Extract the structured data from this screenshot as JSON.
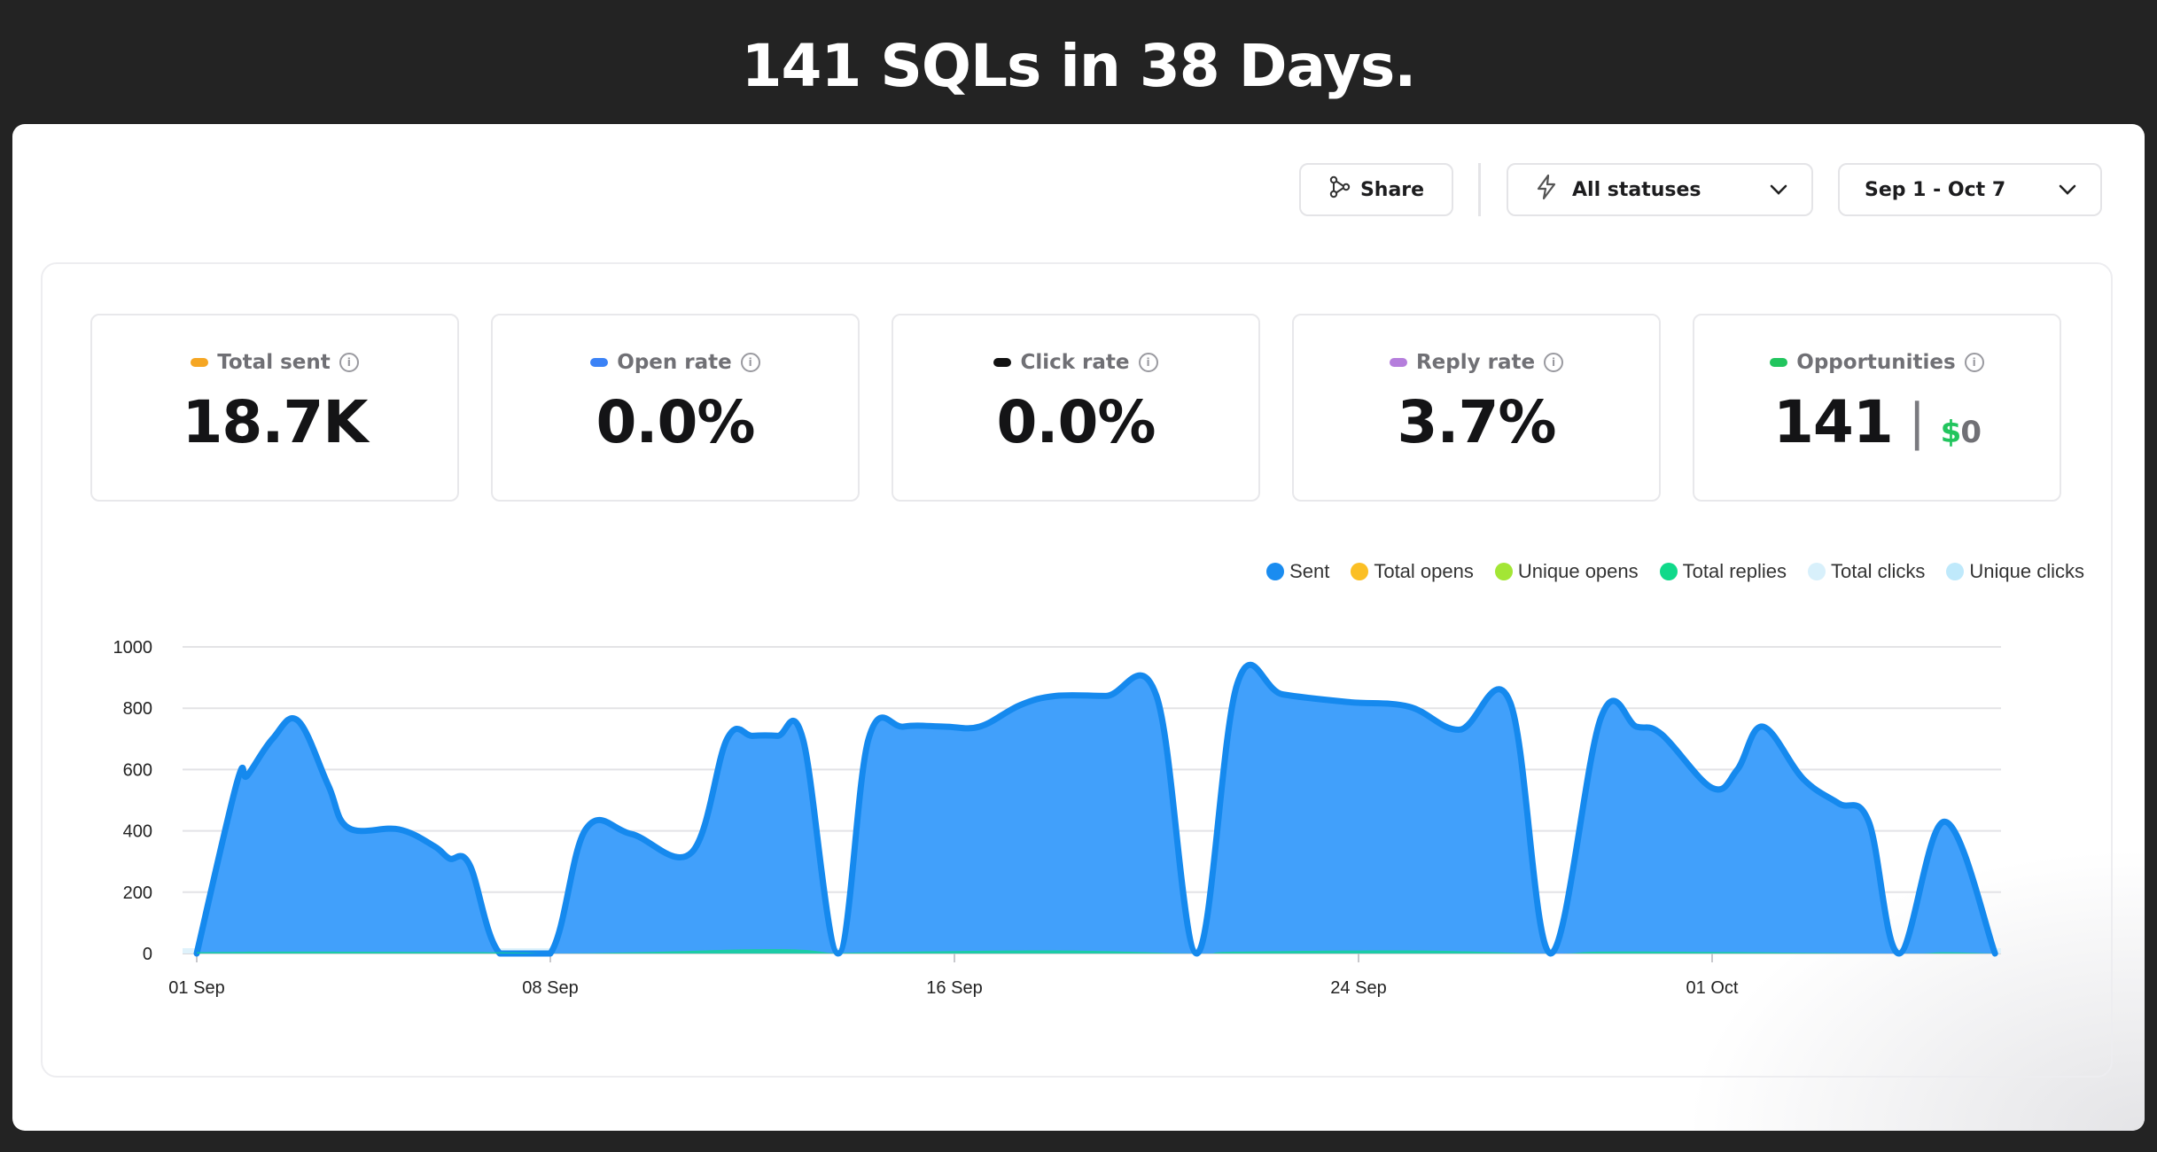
{
  "headline": "141 SQLs in 38 Days.",
  "toolbar": {
    "share_label": "Share",
    "status_label": "All statuses",
    "date_label": "Sep 1 - Oct 7"
  },
  "stats": [
    {
      "label": "Total sent",
      "value": "18.7K",
      "color": "#f5a623"
    },
    {
      "label": "Open rate",
      "value": "0.0%",
      "color": "#3b82f6"
    },
    {
      "label": "Click rate",
      "value": "0.0%",
      "color": "#111111"
    },
    {
      "label": "Reply rate",
      "value": "3.7%",
      "color": "#b57edc"
    },
    {
      "label": "Opportunities",
      "value": "141",
      "money_symbol": "$",
      "money_value": "0",
      "color": "#22c55e"
    }
  ],
  "legend": [
    {
      "name": "Sent",
      "color": "#1a8cf0"
    },
    {
      "name": "Total opens",
      "color": "#fbbf24"
    },
    {
      "name": "Unique opens",
      "color": "#a3e635"
    },
    {
      "name": "Total replies",
      "color": "#10d98a"
    },
    {
      "name": "Total clicks",
      "color": "#d8f0fb"
    },
    {
      "name": "Unique clicks",
      "color": "#bfe9fb"
    }
  ],
  "chart_data": {
    "type": "area",
    "ylim": [
      0,
      1000
    ],
    "yticks": [
      0,
      200,
      400,
      600,
      800,
      1000
    ],
    "xticks": [
      {
        "label": "01 Sep",
        "day": 0
      },
      {
        "label": "08 Sep",
        "day": 7
      },
      {
        "label": "16 Sep",
        "day": 15
      },
      {
        "label": "24 Sep",
        "day": 23
      },
      {
        "label": "01 Oct",
        "day": 30
      }
    ],
    "series": [
      {
        "name": "Sent",
        "color": "#1a8cf0",
        "points": [
          [
            0,
            0
          ],
          [
            0.8,
            560
          ],
          [
            1,
            580
          ],
          [
            1.5,
            700
          ],
          [
            2,
            760
          ],
          [
            2.6,
            550
          ],
          [
            3,
            410
          ],
          [
            4,
            405
          ],
          [
            4.7,
            350
          ],
          [
            5,
            310
          ],
          [
            5.4,
            290
          ],
          [
            6,
            0
          ],
          [
            7,
            0
          ],
          [
            7.7,
            405
          ],
          [
            8.6,
            390
          ],
          [
            9.8,
            330
          ],
          [
            10.5,
            700
          ],
          [
            11,
            710
          ],
          [
            11.5,
            710
          ],
          [
            12,
            700
          ],
          [
            12.7,
            0
          ],
          [
            13.3,
            700
          ],
          [
            14,
            740
          ],
          [
            14.8,
            740
          ],
          [
            15.5,
            740
          ],
          [
            16.3,
            810
          ],
          [
            17,
            840
          ],
          [
            18,
            840
          ],
          [
            19,
            840
          ],
          [
            19.8,
            0
          ],
          [
            20.6,
            880
          ],
          [
            21.5,
            845
          ],
          [
            22.8,
            820
          ],
          [
            24,
            805
          ],
          [
            25,
            730
          ],
          [
            26,
            820
          ],
          [
            26.8,
            0
          ],
          [
            27.8,
            770
          ],
          [
            28.5,
            740
          ],
          [
            29,
            715
          ],
          [
            30,
            540
          ],
          [
            30.5,
            600
          ],
          [
            31,
            740
          ],
          [
            31.8,
            570
          ],
          [
            32.5,
            490
          ],
          [
            33.1,
            430
          ],
          [
            33.7,
            0
          ],
          [
            34.6,
            430
          ],
          [
            35.6,
            0
          ]
        ]
      },
      {
        "name": "Total replies",
        "color": "#10d98a",
        "points": [
          [
            0,
            4
          ],
          [
            2,
            6
          ],
          [
            6,
            4
          ],
          [
            7,
            0
          ],
          [
            9,
            5
          ],
          [
            11,
            14
          ],
          [
            12,
            12
          ],
          [
            12.7,
            0
          ],
          [
            13.3,
            4
          ],
          [
            17,
            10
          ],
          [
            19.8,
            0
          ],
          [
            20.6,
            6
          ],
          [
            24,
            10
          ],
          [
            26.8,
            0
          ],
          [
            27.8,
            6
          ],
          [
            30,
            5
          ],
          [
            33.7,
            0
          ],
          [
            34.6,
            4
          ],
          [
            35.6,
            0
          ]
        ]
      }
    ]
  }
}
